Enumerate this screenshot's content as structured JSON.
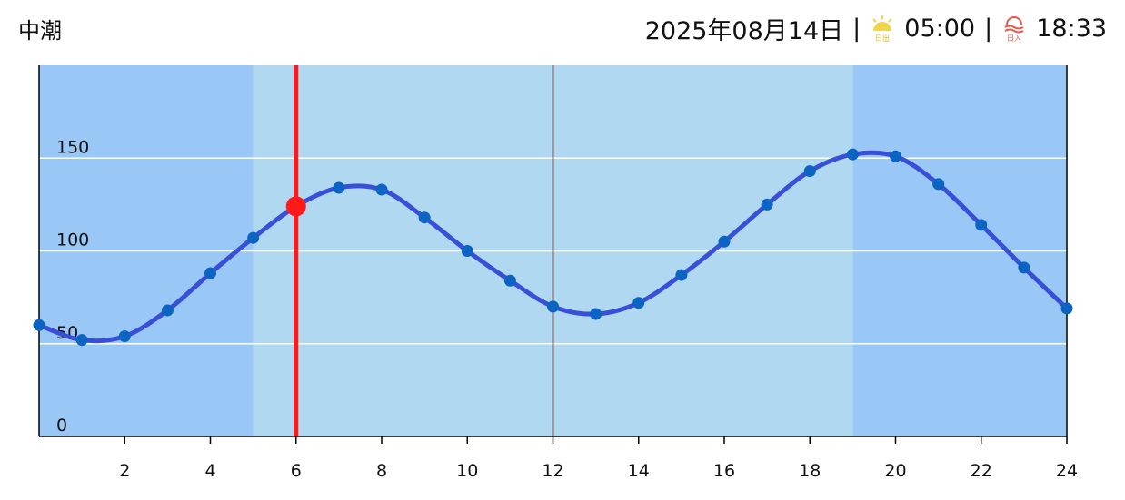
{
  "header": {
    "title": "中潮",
    "date": "2025年08月14日",
    "separator": "|",
    "sunrise_icon_label": "日出",
    "sunrise": "05:00",
    "sunset_icon_label": "日入",
    "sunset": "18:33"
  },
  "chart_data": {
    "type": "line",
    "x": [
      0,
      1,
      2,
      3,
      4,
      5,
      6,
      7,
      8,
      9,
      10,
      11,
      12,
      13,
      14,
      15,
      16,
      17,
      18,
      19,
      20,
      21,
      22,
      23,
      24
    ],
    "values": [
      60,
      52,
      54,
      68,
      88,
      107,
      124,
      134,
      133,
      118,
      100,
      84,
      70,
      66,
      72,
      87,
      105,
      125,
      143,
      152,
      151,
      136,
      114,
      91,
      69
    ],
    "color": "#3a4fd8",
    "point_color": "#0b63c2",
    "xlim": [
      0,
      24
    ],
    "xticks": [
      2,
      4,
      6,
      8,
      10,
      12,
      14,
      16,
      18,
      20,
      22,
      24
    ],
    "ylim": [
      0,
      200
    ],
    "yticks": [
      0,
      50,
      100,
      150
    ],
    "grid": true,
    "daylight": [
      5,
      19
    ],
    "night_color": "#99c8f6",
    "day_color": "#b0d8f0",
    "noon_line": 12,
    "current": {
      "x": 6,
      "y": 124,
      "color": "#ff1a1a"
    }
  }
}
